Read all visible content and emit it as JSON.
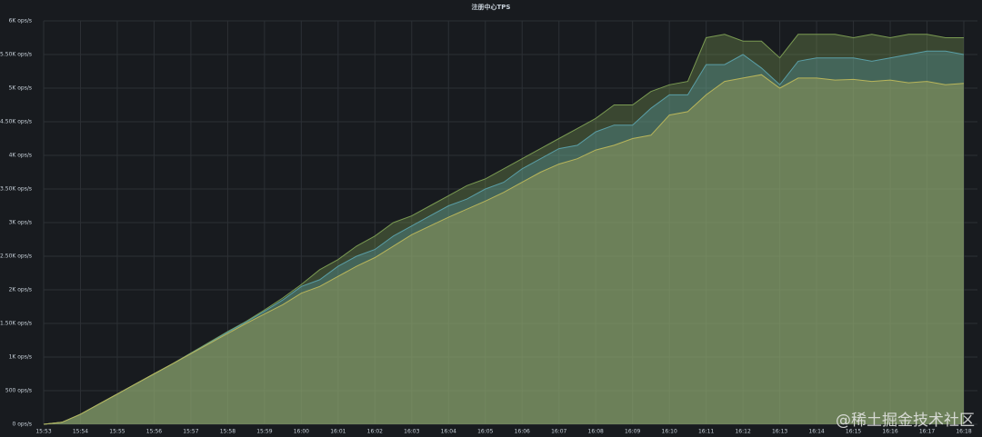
{
  "chart_data": {
    "type": "area",
    "title": "注册中心TPS",
    "categories": [
      "15:53",
      null,
      "15:54",
      null,
      "15:55",
      null,
      "15:56",
      null,
      "15:57",
      null,
      "15:58",
      null,
      "15:59",
      null,
      "16:00",
      null,
      "16:01",
      null,
      "16:02",
      null,
      "16:03",
      null,
      "16:04",
      null,
      "16:05",
      null,
      "16:06",
      null,
      "16:07",
      null,
      "16:08",
      null,
      "16:09",
      null,
      "16:10",
      null,
      "16:11",
      null,
      "16:12",
      null,
      "16:13",
      null,
      "16:14",
      null,
      "16:15",
      null,
      "16:16",
      null,
      "16:17",
      null,
      "16:18"
    ],
    "series": [
      {
        "color": "#7a9a52",
        "values": [
          0,
          30,
          150,
          300,
          450,
          600,
          750,
          900,
          1060,
          1220,
          1380,
          1530,
          1700,
          1880,
          2080,
          2300,
          2450,
          2650,
          2800,
          3000,
          3100,
          3250,
          3400,
          3550,
          3650,
          3800,
          3950,
          4100,
          4250,
          4400,
          4550,
          4750,
          4750,
          4950,
          5050,
          5100,
          5750,
          5800,
          5700,
          5700,
          5450,
          5800,
          5800,
          5800,
          5750,
          5800,
          5750,
          5800,
          5800,
          5750,
          5750
        ]
      },
      {
        "color": "#5a9ea6",
        "values": [
          0,
          30,
          150,
          300,
          450,
          600,
          750,
          900,
          1055,
          1210,
          1370,
          1520,
          1680,
          1850,
          2050,
          2150,
          2350,
          2500,
          2600,
          2800,
          2950,
          3100,
          3250,
          3350,
          3500,
          3600,
          3800,
          3950,
          4100,
          4150,
          4350,
          4450,
          4450,
          4700,
          4900,
          4900,
          5350,
          5350,
          5500,
          5300,
          5050,
          5400,
          5450,
          5450,
          5450,
          5400,
          5450,
          5500,
          5550,
          5550,
          5500
        ]
      },
      {
        "color": "#b8b55a",
        "values": [
          0,
          30,
          150,
          300,
          450,
          600,
          750,
          900,
          1050,
          1200,
          1350,
          1500,
          1640,
          1780,
          1950,
          2050,
          2200,
          2350,
          2480,
          2650,
          2820,
          2950,
          3080,
          3200,
          3320,
          3450,
          3600,
          3750,
          3870,
          3950,
          4080,
          4150,
          4250,
          4300,
          4600,
          4650,
          4900,
          5100,
          5150,
          5200,
          5000,
          5150,
          5150,
          5120,
          5130,
          5100,
          5120,
          5080,
          5100,
          5050,
          5070
        ]
      }
    ],
    "ylim": [
      0,
      6000
    ],
    "yticks": [
      {
        "value": 0,
        "label": "0 ops/s"
      },
      {
        "value": 500,
        "label": "500 ops/s"
      },
      {
        "value": 1000,
        "label": "1K ops/s"
      },
      {
        "value": 1500,
        "label": "1.50K ops/s"
      },
      {
        "value": 2000,
        "label": "2K ops/s"
      },
      {
        "value": 2500,
        "label": "2.50K ops/s"
      },
      {
        "value": 3000,
        "label": "3K ops/s"
      },
      {
        "value": 3500,
        "label": "3.50K ops/s"
      },
      {
        "value": 4000,
        "label": "4K ops/s"
      },
      {
        "value": 4500,
        "label": "4.50K ops/s"
      },
      {
        "value": 5000,
        "label": "5K ops/s"
      },
      {
        "value": 5500,
        "label": "5.50K ops/s"
      },
      {
        "value": 6000,
        "label": "6K ops/s"
      }
    ],
    "grid": true,
    "watermark": "@稀土掘金技术社区"
  }
}
